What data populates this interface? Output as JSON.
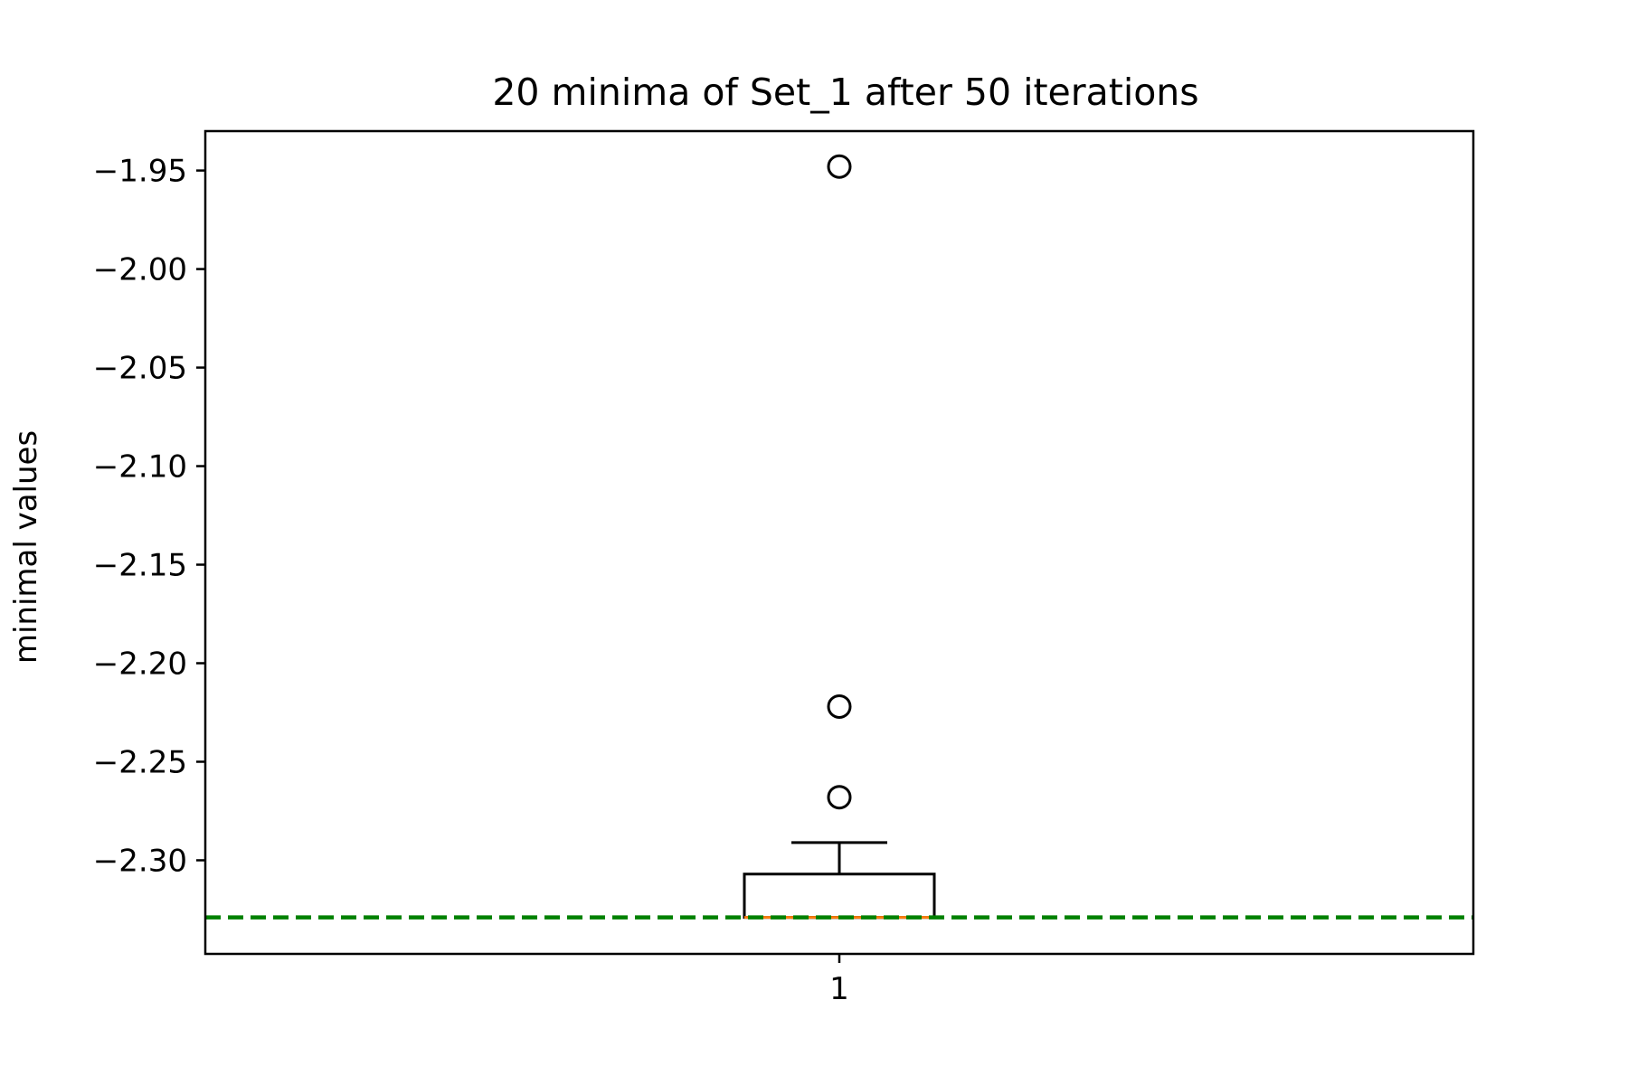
{
  "chart_data": {
    "type": "box",
    "title": "20 minima of Set_1 after 50 iterations",
    "xlabel": "",
    "ylabel": "minimal values",
    "categories": [
      "1"
    ],
    "boxes": [
      {
        "category": "1",
        "whisker_low": -2.329,
        "q1": -2.329,
        "median": -2.329,
        "q3": -2.307,
        "whisker_high": -2.291,
        "outliers": [
          -1.948,
          -2.222,
          -2.268
        ]
      }
    ],
    "reference_line": {
      "value": -2.329,
      "style": "dashed",
      "color": "#008000"
    },
    "ylim": [
      -2.3475,
      -1.93
    ],
    "yticks": [
      -1.95,
      -2.0,
      -2.05,
      -2.1,
      -2.15,
      -2.2,
      -2.25,
      -2.3
    ],
    "ytick_labels": [
      "−1.95",
      "−2.00",
      "−2.05",
      "−2.10",
      "−2.15",
      "−2.20",
      "−2.25",
      "−2.30"
    ],
    "grid": false,
    "colors": {
      "box": "#000000",
      "median": "#ff7f0e",
      "reference": "#008000"
    }
  }
}
